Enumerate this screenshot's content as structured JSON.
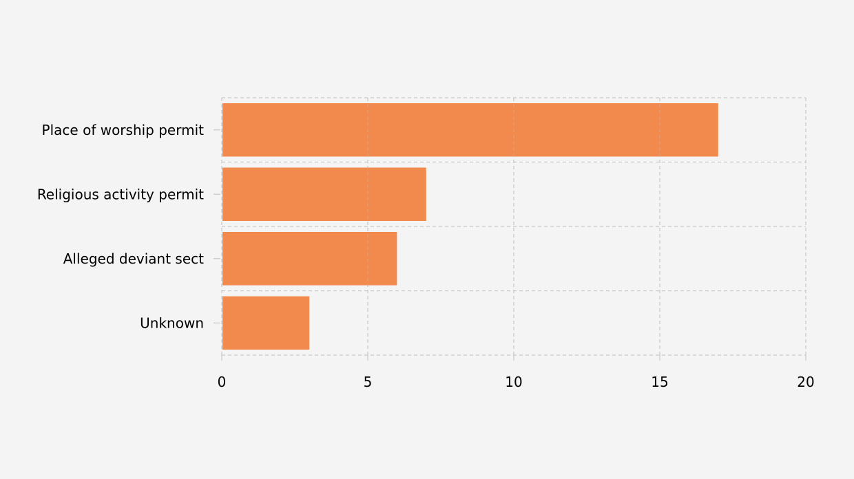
{
  "chart_data": {
    "type": "bar",
    "orientation": "horizontal",
    "categories": [
      "Place of worship permit",
      "Religious activity permit",
      "Alleged deviant sect",
      "Unknown"
    ],
    "values": [
      17,
      7,
      6,
      3
    ],
    "xlim": [
      0,
      20
    ],
    "xticks": [
      0,
      5,
      10,
      15,
      20
    ],
    "xtick_labels": [
      "0",
      "5",
      "10",
      "15",
      "20"
    ],
    "title": "",
    "xlabel": "",
    "ylabel": "",
    "grid": true,
    "legend": "none",
    "colors": {
      "bar": "#f28a4d",
      "grid": "#c8c8c8",
      "background": "#f4f4f4"
    }
  }
}
